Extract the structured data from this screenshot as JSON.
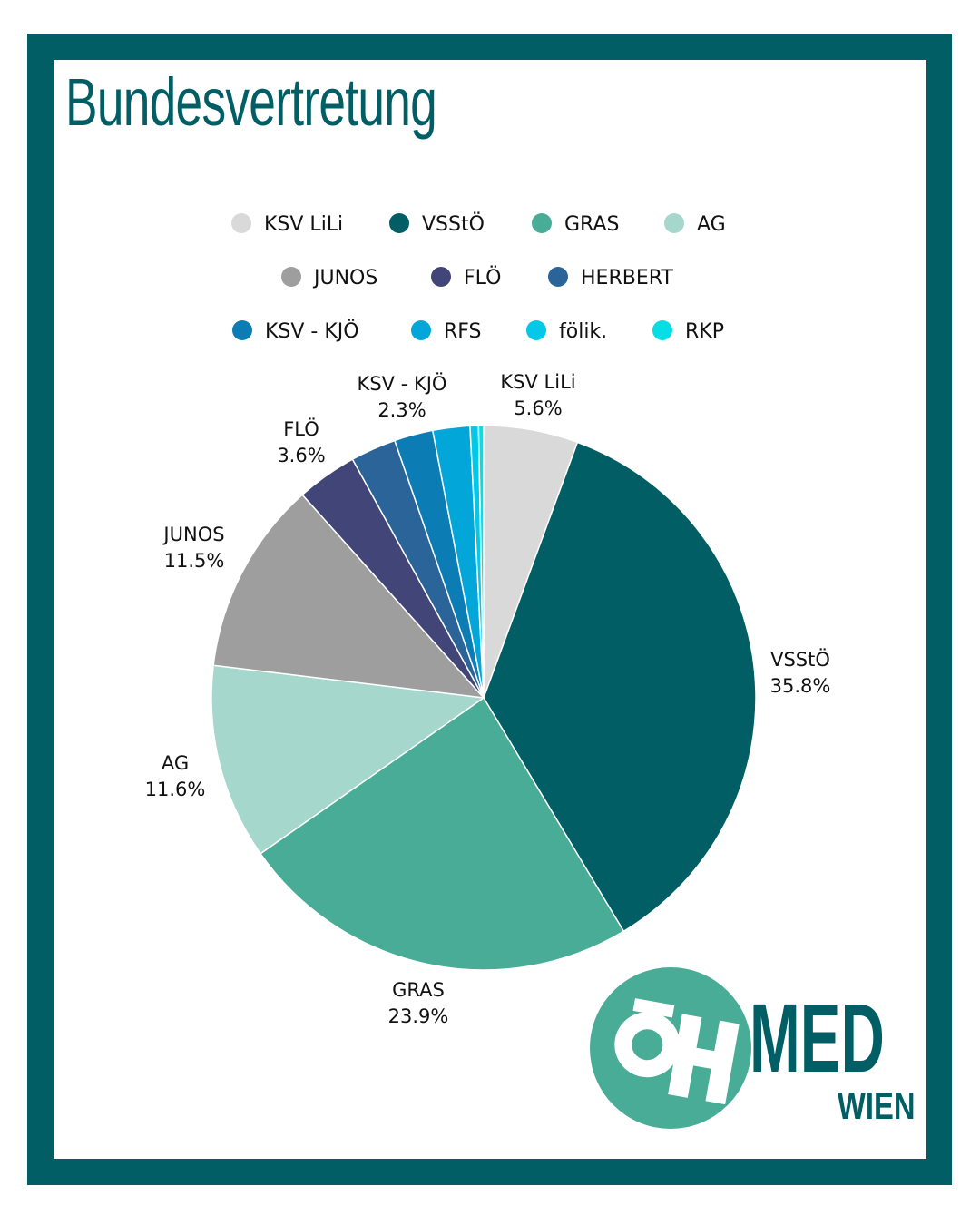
{
  "title": "Bundesvertretung",
  "colors": {
    "frame": "#005e64",
    "title": "#005e64",
    "logo_circle": "#48ac96",
    "logo_text": "#005e64"
  },
  "chart_data": {
    "type": "pie",
    "title": "",
    "legend_position": "top",
    "series": [
      {
        "name": "KSV LiLi",
        "value": 5.6,
        "label": "5.6%",
        "color": "#d9d9d9"
      },
      {
        "name": "VSStÖ",
        "value": 35.8,
        "label": "35.8%",
        "color": "#005e64"
      },
      {
        "name": "GRAS",
        "value": 23.9,
        "label": "23.9%",
        "color": "#48ac96"
      },
      {
        "name": "AG",
        "value": 11.6,
        "label": "11.6%",
        "color": "#a6d7cc"
      },
      {
        "name": "JUNOS",
        "value": 11.5,
        "label": "11.5%",
        "color": "#9e9e9e"
      },
      {
        "name": "FLÖ",
        "value": 3.6,
        "label": "3.6%",
        "color": "#414577"
      },
      {
        "name": "HERBERT",
        "value": 2.7,
        "label": "",
        "color": "#2a6498"
      },
      {
        "name": "KSV - KJÖ",
        "value": 2.3,
        "label": "2.3%",
        "color": "#0c7db4"
      },
      {
        "name": "RFS",
        "value": 2.2,
        "label": "",
        "color": "#03a6d9"
      },
      {
        "name": "fölik.",
        "value": 0.5,
        "label": "",
        "color": "#04c8e8"
      },
      {
        "name": "RKP",
        "value": 0.3,
        "label": "",
        "color": "#06dde5"
      }
    ]
  },
  "logo": {
    "med": "MED",
    "wien": "WIEN"
  }
}
